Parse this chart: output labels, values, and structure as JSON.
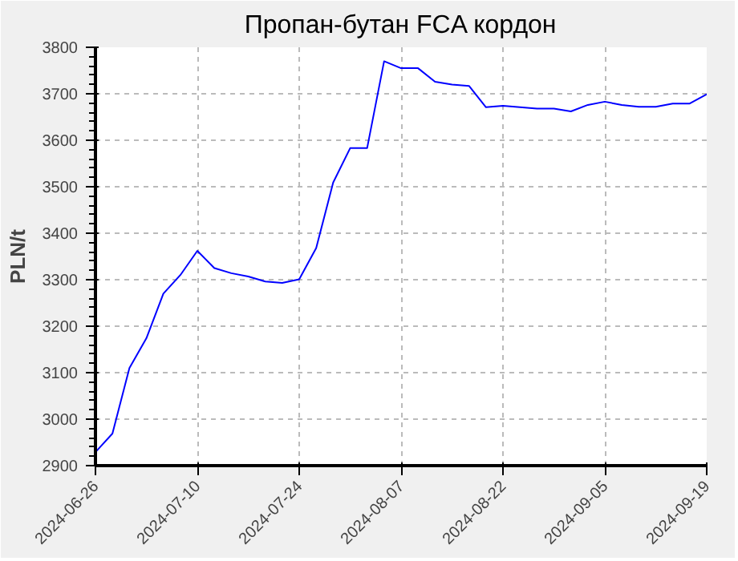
{
  "chart_data": {
    "type": "line",
    "title": "Пропан-бутан FCA кордон",
    "ylabel": "PLN/t",
    "categories": [
      "2024-06-26",
      null,
      null,
      null,
      null,
      null,
      "2024-07-10",
      null,
      null,
      null,
      null,
      null,
      "2024-07-24",
      null,
      null,
      null,
      null,
      null,
      "2024-08-07",
      null,
      null,
      null,
      null,
      null,
      "2024-08-22",
      null,
      null,
      null,
      null,
      null,
      "2024-09-05",
      null,
      null,
      null,
      null,
      null,
      "2024-09-19"
    ],
    "series": [
      {
        "color": "#0000ff",
        "values": [
          2929,
          2969,
          3110,
          3174,
          3270,
          3310,
          3362,
          3325,
          3314,
          3307,
          3296,
          3293,
          3301,
          3368,
          3509,
          3583,
          3583,
          3770,
          3755,
          3755,
          3726,
          3720,
          3717,
          3671,
          3674,
          3671,
          3668,
          3668,
          3662,
          3676,
          3683,
          3676,
          3672,
          3672,
          3679,
          3679,
          3699
        ]
      }
    ],
    "ylim": [
      2900,
      3800
    ],
    "yticks": [
      2900,
      3000,
      3100,
      3200,
      3300,
      3400,
      3500,
      3600,
      3700,
      3800
    ],
    "grid": true,
    "marker": "none",
    "line_style": "solid"
  }
}
